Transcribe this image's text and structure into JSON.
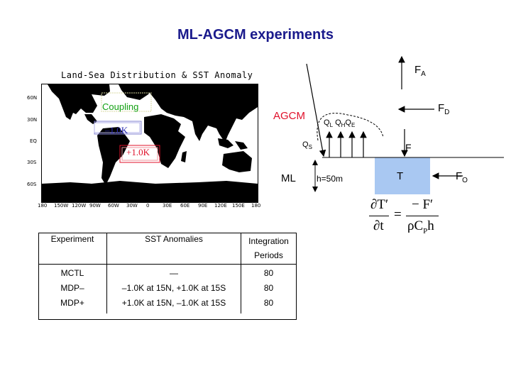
{
  "title": "ML-AGCM experiments",
  "map": {
    "title": "Land-Sea Distribution & SST Anomaly",
    "lat_labels": [
      "60N",
      "30N",
      "EQ",
      "30S",
      "60S"
    ],
    "lon_labels": [
      "180",
      "150W",
      "120W",
      "90W",
      "60W",
      "30W",
      "0",
      "30E",
      "60E",
      "90E",
      "120E",
      "150E",
      "180"
    ],
    "coupling_label": "Coupling",
    "anomaly_neg": "–1.0K",
    "anomaly_pos": "+1.0K"
  },
  "schematic": {
    "fa": {
      "main": "F",
      "sub": "A"
    },
    "fd": {
      "main": "F",
      "sub": "D"
    },
    "fo": {
      "main": "F",
      "sub": "O"
    },
    "agcm": "AGCM",
    "ql": {
      "main": "Q",
      "sub": "L"
    },
    "qh": {
      "main": "Q",
      "sub": "H"
    },
    "qe": {
      "main": "Q",
      "sub": "E"
    },
    "qs": {
      "main": "Q",
      "sub": "S"
    },
    "f": "F",
    "ml": "ML",
    "depth": "h=50m",
    "t": "T",
    "eq_num_left": "∂T′",
    "eq_den_left": "∂t",
    "eq_equals": "=",
    "eq_num_right": "− F′",
    "eq_den_right_a": "ρC",
    "eq_den_right_sub": "P",
    "eq_den_right_b": "h",
    "colors": {
      "ml_box": "#a9c8f2",
      "agcm": "#e0102a",
      "title": "#1a1a8c"
    }
  },
  "table": {
    "headers": [
      "Experiment",
      "SST Anomalies",
      "Integration Periods"
    ],
    "rows": [
      {
        "experiment": "MCTL",
        "anomaly": "—",
        "period": "80"
      },
      {
        "experiment": "MDP–",
        "anomaly": "–1.0K at 15N, +1.0K at 15S",
        "period": "80"
      },
      {
        "experiment": "MDP+",
        "anomaly": "+1.0K at 15N, –1.0K at 15S",
        "period": "80"
      }
    ]
  }
}
